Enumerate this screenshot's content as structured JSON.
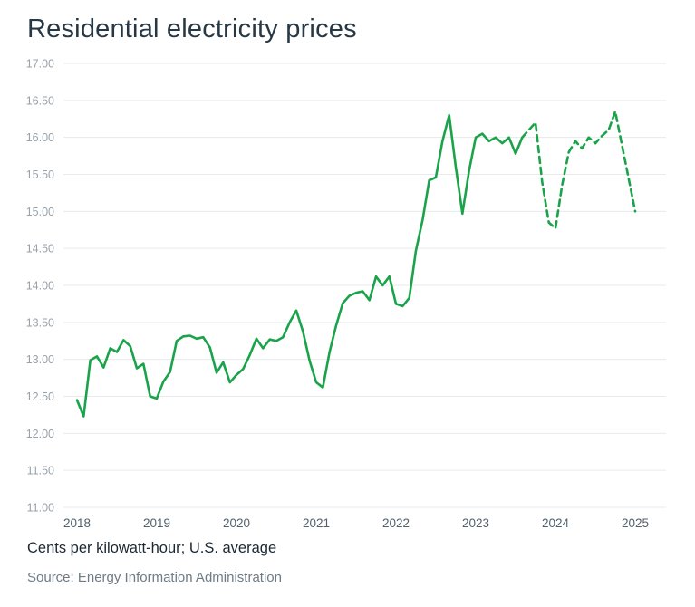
{
  "title": "Residential electricity prices",
  "footer": {
    "caption": "Cents per kilowatt-hour; U.S. average",
    "source": "Source: Energy Information Administration"
  },
  "chart_data": {
    "type": "line",
    "title": "Residential electricity prices",
    "ylabel": "Cents per kilowatt-hour",
    "xlabel": "",
    "ylim": [
      11.0,
      17.0
    ],
    "ytick_step": 0.5,
    "ytick_labels": [
      "17.00",
      "16.50",
      "16.00",
      "15.50",
      "15.00",
      "14.50",
      "14.00",
      "13.50",
      "13.00",
      "12.50",
      "12.00",
      "11.50",
      "11.00"
    ],
    "x_ticks": [
      "2018",
      "2019",
      "2020",
      "2021",
      "2022",
      "2023",
      "2024",
      "2025"
    ],
    "x_start": "2018-01",
    "x_end": "2025-01",
    "frequency": "monthly",
    "grid": true,
    "legend": "none",
    "line_color": "#1aa34a",
    "grid_color": "#e8eaec",
    "ytick_color": "#98a2aa",
    "xtick_color": "#51616b",
    "dashed_from_index": 67,
    "dashed_note": "final segment of the line is dashed (most recent months)",
    "series": [
      {
        "name": "U.S. average residential electricity price (cents per kWh)",
        "values": [
          12.45,
          12.23,
          12.99,
          13.04,
          12.89,
          13.15,
          13.1,
          13.26,
          13.18,
          12.88,
          12.94,
          12.5,
          12.47,
          12.7,
          12.83,
          13.25,
          13.31,
          13.32,
          13.28,
          13.3,
          13.16,
          12.82,
          12.96,
          12.69,
          12.79,
          12.87,
          13.06,
          13.28,
          13.15,
          13.27,
          13.25,
          13.3,
          13.5,
          13.66,
          13.38,
          12.98,
          12.69,
          12.62,
          13.1,
          13.46,
          13.76,
          13.86,
          13.9,
          13.92,
          13.8,
          14.12,
          14.0,
          14.12,
          13.75,
          13.72,
          13.83,
          14.47,
          14.88,
          15.42,
          15.46,
          15.95,
          16.3,
          15.6,
          14.97,
          15.55,
          16.0,
          16.05,
          15.95,
          16.0,
          15.92,
          16.0,
          15.78,
          16.0,
          16.1,
          16.2,
          15.4,
          14.85,
          14.77,
          15.35,
          15.8,
          15.95,
          15.85,
          16.0,
          15.92,
          16.02,
          16.1,
          16.35,
          15.9,
          15.45,
          15.0
        ]
      }
    ]
  }
}
